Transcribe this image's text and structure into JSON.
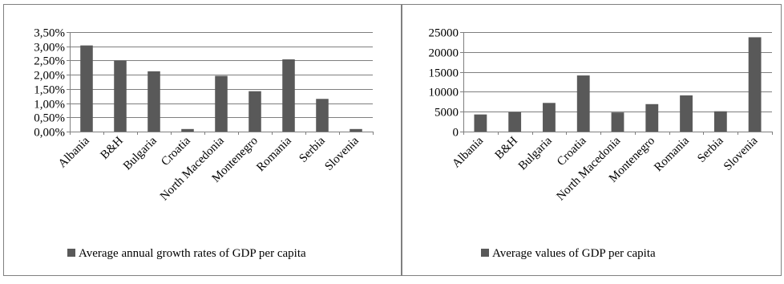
{
  "colors": {
    "bar": "#595959",
    "grid": "#7f7f7f",
    "border": "#808080",
    "text": "#000000"
  },
  "chart_data": [
    {
      "type": "bar",
      "categories": [
        "Albania",
        "B&H",
        "Bulgaria",
        "Croatia",
        "North Macedonia",
        "Montenegro",
        "Romania",
        "Serbia",
        "Slovenia"
      ],
      "series": [
        {
          "name": "Average annual growth rates of GDP per capita",
          "values": [
            3.03,
            2.5,
            2.12,
            0.09,
            1.96,
            1.42,
            2.54,
            1.15,
            0.09
          ]
        }
      ],
      "ylim": [
        0,
        3.5
      ],
      "yticks": [
        "0,00%",
        "0,50%",
        "1,00%",
        "1,50%",
        "2,00%",
        "2,50%",
        "3,00%",
        "3,50%"
      ],
      "grid": true,
      "legend": "bottom"
    },
    {
      "type": "bar",
      "categories": [
        "Albania",
        "B&H",
        "Bulgaria",
        "Croatia",
        "North Macedonia",
        "Montenegro",
        "Romania",
        "Serbia",
        "Slovenia"
      ],
      "series": [
        {
          "name": "Average values of GDP per capita",
          "values": [
            4300,
            4900,
            7200,
            14100,
            4800,
            6900,
            9100,
            5100,
            23700
          ]
        }
      ],
      "ylim": [
        0,
        25000
      ],
      "yticks": [
        "0",
        "5000",
        "10000",
        "15000",
        "20000",
        "25000"
      ],
      "grid": true,
      "legend": "bottom"
    }
  ]
}
